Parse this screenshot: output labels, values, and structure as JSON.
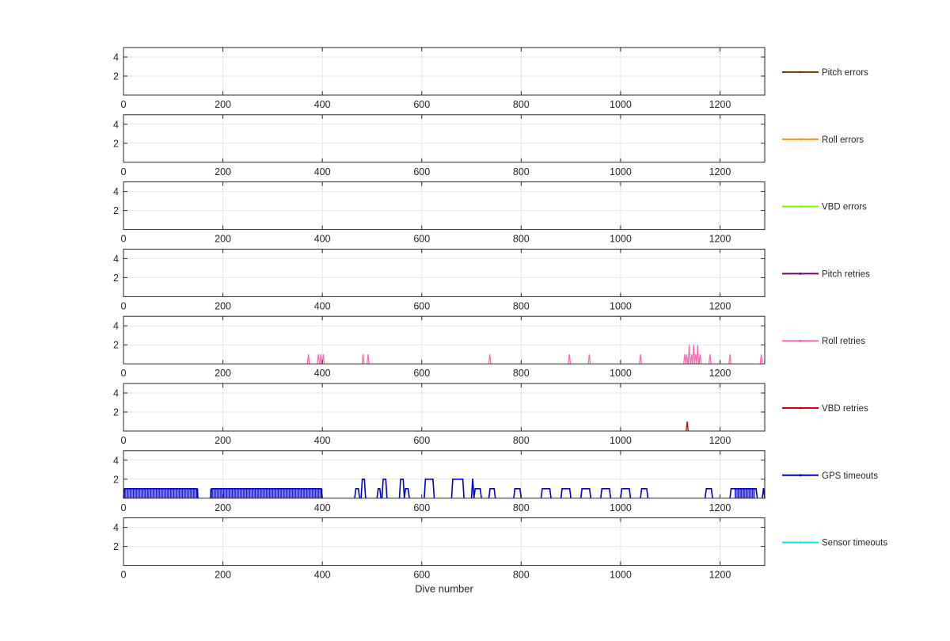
{
  "chart_data": {
    "type": "line",
    "xlabel": "Dive number",
    "xlim": [
      0,
      1290
    ],
    "ylim": [
      0,
      5
    ],
    "x_ticks": [
      0,
      200,
      400,
      600,
      800,
      1000,
      1200
    ],
    "y_ticks": [
      2,
      4
    ],
    "grid": true,
    "legend_position": "right",
    "panels": [
      {
        "name": "Pitch errors",
        "color": "#7a3f00",
        "points": []
      },
      {
        "name": "Roll errors",
        "color": "#ff8c00",
        "points": []
      },
      {
        "name": "VBD errors",
        "color": "#7cfc00",
        "points": []
      },
      {
        "name": "Pitch retries",
        "color": "#6a0a6a",
        "points": []
      },
      {
        "name": "Roll retries",
        "color": "#ff69b4",
        "points": [
          [
            372,
            1
          ],
          [
            392,
            1
          ],
          [
            397,
            1
          ],
          [
            402,
            1
          ],
          [
            482,
            1
          ],
          [
            492,
            1
          ],
          [
            737,
            1
          ],
          [
            897,
            1
          ],
          [
            937,
            1
          ],
          [
            1040,
            1
          ],
          [
            1129,
            1
          ],
          [
            1133,
            1
          ],
          [
            1138,
            2
          ],
          [
            1143,
            1
          ],
          [
            1147,
            2
          ],
          [
            1151,
            1
          ],
          [
            1155,
            2
          ],
          [
            1160,
            1
          ],
          [
            1180,
            1
          ],
          [
            1220,
            1
          ],
          [
            1283,
            1
          ]
        ]
      },
      {
        "name": "VBD retries",
        "color": "#cc0000",
        "points": [
          [
            1134,
            1
          ]
        ]
      },
      {
        "name": "GPS timeouts",
        "color": "#0000cc",
        "segments": [
          [
            0,
            150,
            1
          ],
          [
            175,
            400,
            1
          ],
          [
            465,
            475,
            1
          ],
          [
            478,
            487,
            2
          ],
          [
            510,
            518,
            1
          ],
          [
            520,
            530,
            2
          ],
          [
            555,
            565,
            2
          ],
          [
            565,
            575,
            1
          ],
          [
            605,
            625,
            2
          ],
          [
            660,
            685,
            2
          ],
          [
            700,
            705,
            2
          ],
          [
            705,
            720,
            1
          ],
          [
            735,
            748,
            1
          ],
          [
            785,
            800,
            1
          ],
          [
            840,
            860,
            1
          ],
          [
            880,
            900,
            1
          ],
          [
            920,
            940,
            1
          ],
          [
            960,
            980,
            1
          ],
          [
            1000,
            1020,
            1
          ],
          [
            1040,
            1055,
            1
          ],
          [
            1170,
            1185,
            1
          ],
          [
            1220,
            1275,
            1
          ],
          [
            1285,
            1290,
            1
          ]
        ],
        "dense_ranges": [
          [
            0,
            150
          ],
          [
            175,
            400
          ],
          [
            1230,
            1270
          ]
        ]
      },
      {
        "name": "Sensor timeouts",
        "color": "#00e5ee",
        "points": []
      }
    ]
  }
}
